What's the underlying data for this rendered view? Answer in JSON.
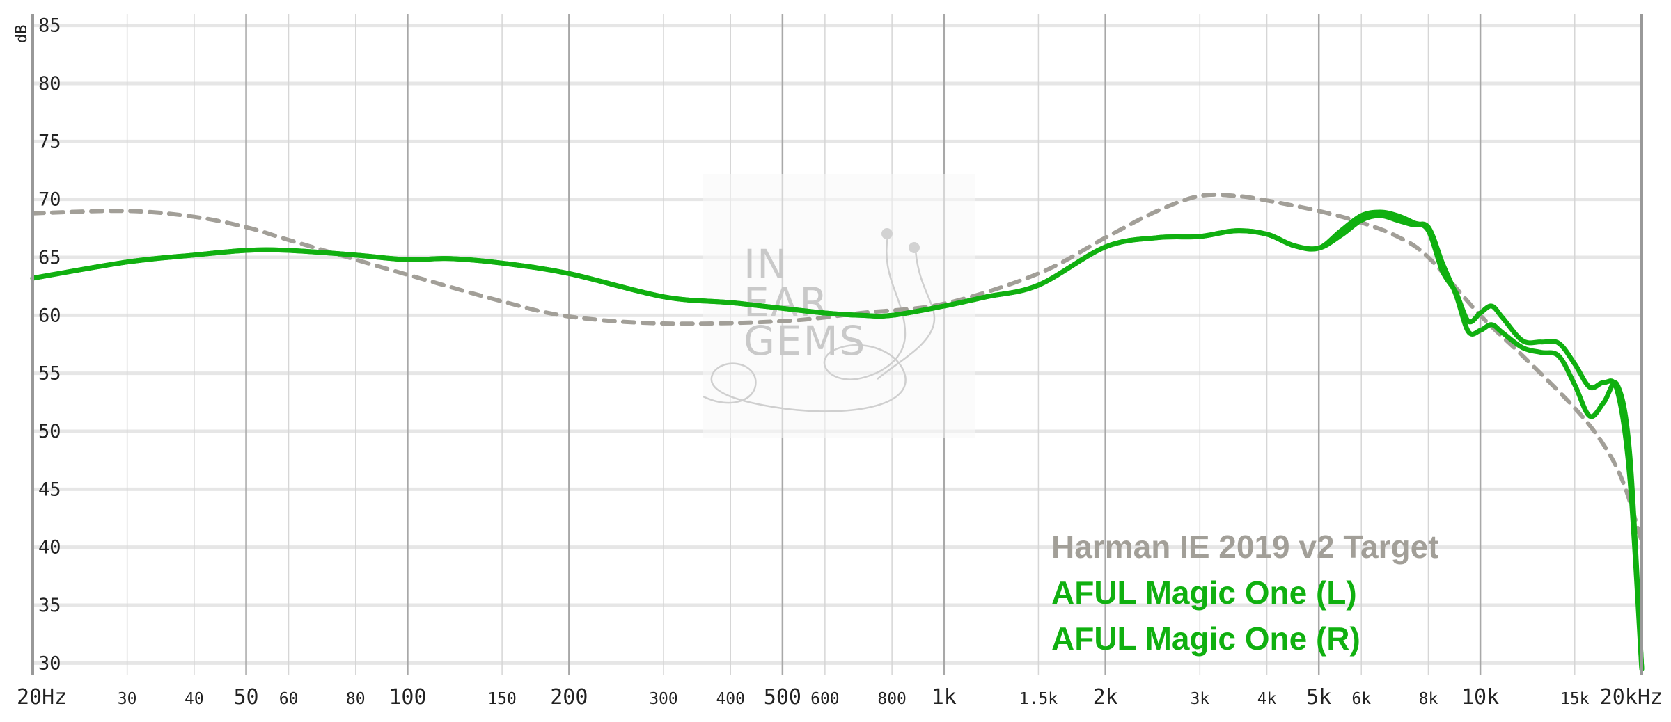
{
  "chart_data": {
    "type": "line",
    "y_unit": "dB",
    "x_scale": "log",
    "xlim": [
      20,
      20000
    ],
    "ylim": [
      29,
      86
    ],
    "grid": true,
    "legend_position": "bottom-right",
    "y_ticks": [
      {
        "value": 85,
        "label": "85"
      },
      {
        "value": 80,
        "label": "80"
      },
      {
        "value": 75,
        "label": "75"
      },
      {
        "value": 70,
        "label": "70"
      },
      {
        "value": 65,
        "label": "65"
      },
      {
        "value": 60,
        "label": "60"
      },
      {
        "value": 55,
        "label": "55"
      },
      {
        "value": 50,
        "label": "50"
      },
      {
        "value": 45,
        "label": "45"
      },
      {
        "value": 40,
        "label": "40"
      },
      {
        "value": 35,
        "label": "35"
      },
      {
        "value": 30,
        "label": "30"
      }
    ],
    "x_ticks": [
      {
        "value": 20,
        "label": "20Hz",
        "major": true
      },
      {
        "value": 30,
        "label": "30",
        "major": false
      },
      {
        "value": 40,
        "label": "40",
        "major": false
      },
      {
        "value": 50,
        "label": "50",
        "major": true
      },
      {
        "value": 60,
        "label": "60",
        "major": false
      },
      {
        "value": 80,
        "label": "80",
        "major": false
      },
      {
        "value": 100,
        "label": "100",
        "major": true
      },
      {
        "value": 150,
        "label": "150",
        "major": false
      },
      {
        "value": 200,
        "label": "200",
        "major": true
      },
      {
        "value": 300,
        "label": "300",
        "major": false
      },
      {
        "value": 400,
        "label": "400",
        "major": false
      },
      {
        "value": 500,
        "label": "500",
        "major": true
      },
      {
        "value": 600,
        "label": "600",
        "major": false
      },
      {
        "value": 800,
        "label": "800",
        "major": false
      },
      {
        "value": 1000,
        "label": "1k",
        "major": true
      },
      {
        "value": 1500,
        "label": "1.5k",
        "major": false
      },
      {
        "value": 2000,
        "label": "2k",
        "major": true
      },
      {
        "value": 3000,
        "label": "3k",
        "major": false
      },
      {
        "value": 4000,
        "label": "4k",
        "major": false
      },
      {
        "value": 5000,
        "label": "5k",
        "major": true
      },
      {
        "value": 6000,
        "label": "6k",
        "major": false
      },
      {
        "value": 8000,
        "label": "8k",
        "major": false
      },
      {
        "value": 10000,
        "label": "10k",
        "major": true
      },
      {
        "value": 15000,
        "label": "15k",
        "major": false
      },
      {
        "value": 20000,
        "label": "20kHz",
        "major": true
      }
    ],
    "series": [
      {
        "name": "Harman IE 2019 v2 Target",
        "color": "#a29f98",
        "style": "dashed",
        "points": [
          [
            20,
            68.8
          ],
          [
            30,
            69.0
          ],
          [
            40,
            68.5
          ],
          [
            50,
            67.6
          ],
          [
            60,
            66.5
          ],
          [
            80,
            64.8
          ],
          [
            100,
            63.5
          ],
          [
            150,
            61.2
          ],
          [
            200,
            59.9
          ],
          [
            300,
            59.3
          ],
          [
            500,
            59.5
          ],
          [
            700,
            60.2
          ],
          [
            1000,
            61.0
          ],
          [
            1500,
            63.6
          ],
          [
            2000,
            66.7
          ],
          [
            2500,
            69.0
          ],
          [
            3000,
            70.3
          ],
          [
            3500,
            70.3
          ],
          [
            4000,
            69.9
          ],
          [
            5000,
            69.0
          ],
          [
            6000,
            68.0
          ],
          [
            7000,
            66.8
          ],
          [
            8000,
            65.0
          ],
          [
            10000,
            60.0
          ],
          [
            12000,
            56.5
          ],
          [
            15000,
            52.0
          ],
          [
            17000,
            48.8
          ],
          [
            18500,
            45.5
          ],
          [
            20000,
            40.5
          ]
        ]
      },
      {
        "name": "AFUL Magic One (L)",
        "color": "#10b010",
        "style": "solid",
        "points": [
          [
            20,
            63.2
          ],
          [
            30,
            64.6
          ],
          [
            40,
            65.2
          ],
          [
            50,
            65.6
          ],
          [
            60,
            65.6
          ],
          [
            80,
            65.2
          ],
          [
            100,
            64.8
          ],
          [
            120,
            64.9
          ],
          [
            150,
            64.5
          ],
          [
            200,
            63.6
          ],
          [
            300,
            61.6
          ],
          [
            400,
            61.1
          ],
          [
            500,
            60.6
          ],
          [
            600,
            60.2
          ],
          [
            700,
            60.0
          ],
          [
            800,
            60.0
          ],
          [
            1000,
            60.8
          ],
          [
            1200,
            61.6
          ],
          [
            1500,
            62.6
          ],
          [
            2000,
            65.9
          ],
          [
            2500,
            66.7
          ],
          [
            3000,
            66.8
          ],
          [
            3500,
            67.3
          ],
          [
            4000,
            67.0
          ],
          [
            4500,
            66.0
          ],
          [
            5000,
            65.8
          ],
          [
            5500,
            66.9
          ],
          [
            6000,
            68.2
          ],
          [
            6500,
            68.6
          ],
          [
            7000,
            68.2
          ],
          [
            7500,
            67.8
          ],
          [
            8000,
            67.6
          ],
          [
            8500,
            64.5
          ],
          [
            9000,
            61.8
          ],
          [
            9500,
            58.6
          ],
          [
            10000,
            58.7
          ],
          [
            10500,
            59.2
          ],
          [
            11000,
            58.5
          ],
          [
            12000,
            57.2
          ],
          [
            13000,
            56.8
          ],
          [
            14000,
            56.5
          ],
          [
            15000,
            54.0
          ],
          [
            16000,
            51.3
          ],
          [
            17000,
            52.5
          ],
          [
            18000,
            54.0
          ],
          [
            19000,
            48.0
          ],
          [
            20000,
            29.5
          ]
        ]
      },
      {
        "name": "AFUL Magic One (R)",
        "color": "#10b010",
        "style": "solid",
        "points": [
          [
            20,
            63.2
          ],
          [
            30,
            64.6
          ],
          [
            40,
            65.2
          ],
          [
            50,
            65.6
          ],
          [
            60,
            65.6
          ],
          [
            80,
            65.2
          ],
          [
            100,
            64.8
          ],
          [
            120,
            64.9
          ],
          [
            150,
            64.5
          ],
          [
            200,
            63.6
          ],
          [
            300,
            61.6
          ],
          [
            400,
            61.1
          ],
          [
            500,
            60.6
          ],
          [
            600,
            60.2
          ],
          [
            700,
            60.0
          ],
          [
            800,
            60.0
          ],
          [
            1000,
            60.8
          ],
          [
            1200,
            61.6
          ],
          [
            1500,
            62.6
          ],
          [
            2000,
            65.9
          ],
          [
            2500,
            66.7
          ],
          [
            3000,
            66.8
          ],
          [
            3500,
            67.3
          ],
          [
            4000,
            67.0
          ],
          [
            4500,
            66.0
          ],
          [
            5000,
            65.8
          ],
          [
            5500,
            67.3
          ],
          [
            6000,
            68.6
          ],
          [
            6500,
            68.9
          ],
          [
            7000,
            68.6
          ],
          [
            7500,
            68.0
          ],
          [
            8000,
            67.3
          ],
          [
            8500,
            63.8
          ],
          [
            9000,
            62.0
          ],
          [
            9500,
            59.5
          ],
          [
            10000,
            60.2
          ],
          [
            10500,
            60.8
          ],
          [
            11000,
            59.8
          ],
          [
            12000,
            57.8
          ],
          [
            13000,
            57.7
          ],
          [
            14000,
            57.6
          ],
          [
            15000,
            55.8
          ],
          [
            16000,
            53.8
          ],
          [
            17000,
            54.2
          ],
          [
            18000,
            53.5
          ],
          [
            19000,
            46.0
          ],
          [
            20000,
            29.5
          ]
        ]
      }
    ]
  },
  "watermark": {
    "lines": [
      "IN",
      "EAR",
      "GEMS"
    ]
  }
}
